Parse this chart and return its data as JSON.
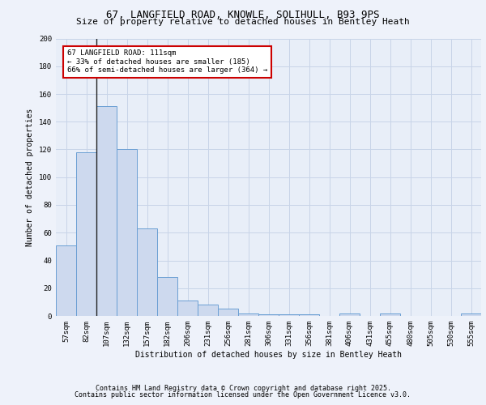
{
  "title1": "67, LANGFIELD ROAD, KNOWLE, SOLIHULL, B93 9PS",
  "title2": "Size of property relative to detached houses in Bentley Heath",
  "xlabel": "Distribution of detached houses by size in Bentley Heath",
  "ylabel": "Number of detached properties",
  "categories": [
    "57sqm",
    "82sqm",
    "107sqm",
    "132sqm",
    "157sqm",
    "182sqm",
    "206sqm",
    "231sqm",
    "256sqm",
    "281sqm",
    "306sqm",
    "331sqm",
    "356sqm",
    "381sqm",
    "406sqm",
    "431sqm",
    "455sqm",
    "480sqm",
    "505sqm",
    "530sqm",
    "555sqm"
  ],
  "values": [
    51,
    118,
    151,
    120,
    63,
    28,
    11,
    8,
    5,
    2,
    1,
    1,
    1,
    0,
    2,
    0,
    2,
    0,
    0,
    0,
    2
  ],
  "bar_color": "#cdd9ee",
  "bar_edge_color": "#6b9fd4",
  "vline_index": 2,
  "vline_color": "#222222",
  "annotation_text": "67 LANGFIELD ROAD: 111sqm\n← 33% of detached houses are smaller (185)\n66% of semi-detached houses are larger (364) →",
  "annotation_box_color": "#ffffff",
  "annotation_border_color": "#cc0000",
  "ylim": [
    0,
    200
  ],
  "yticks": [
    0,
    20,
    40,
    60,
    80,
    100,
    120,
    140,
    160,
    180,
    200
  ],
  "grid_color": "#c8d4e8",
  "background_color": "#e8eef8",
  "fig_background": "#eef2fa",
  "footer1": "Contains HM Land Registry data © Crown copyright and database right 2025.",
  "footer2": "Contains public sector information licensed under the Open Government Licence v3.0."
}
